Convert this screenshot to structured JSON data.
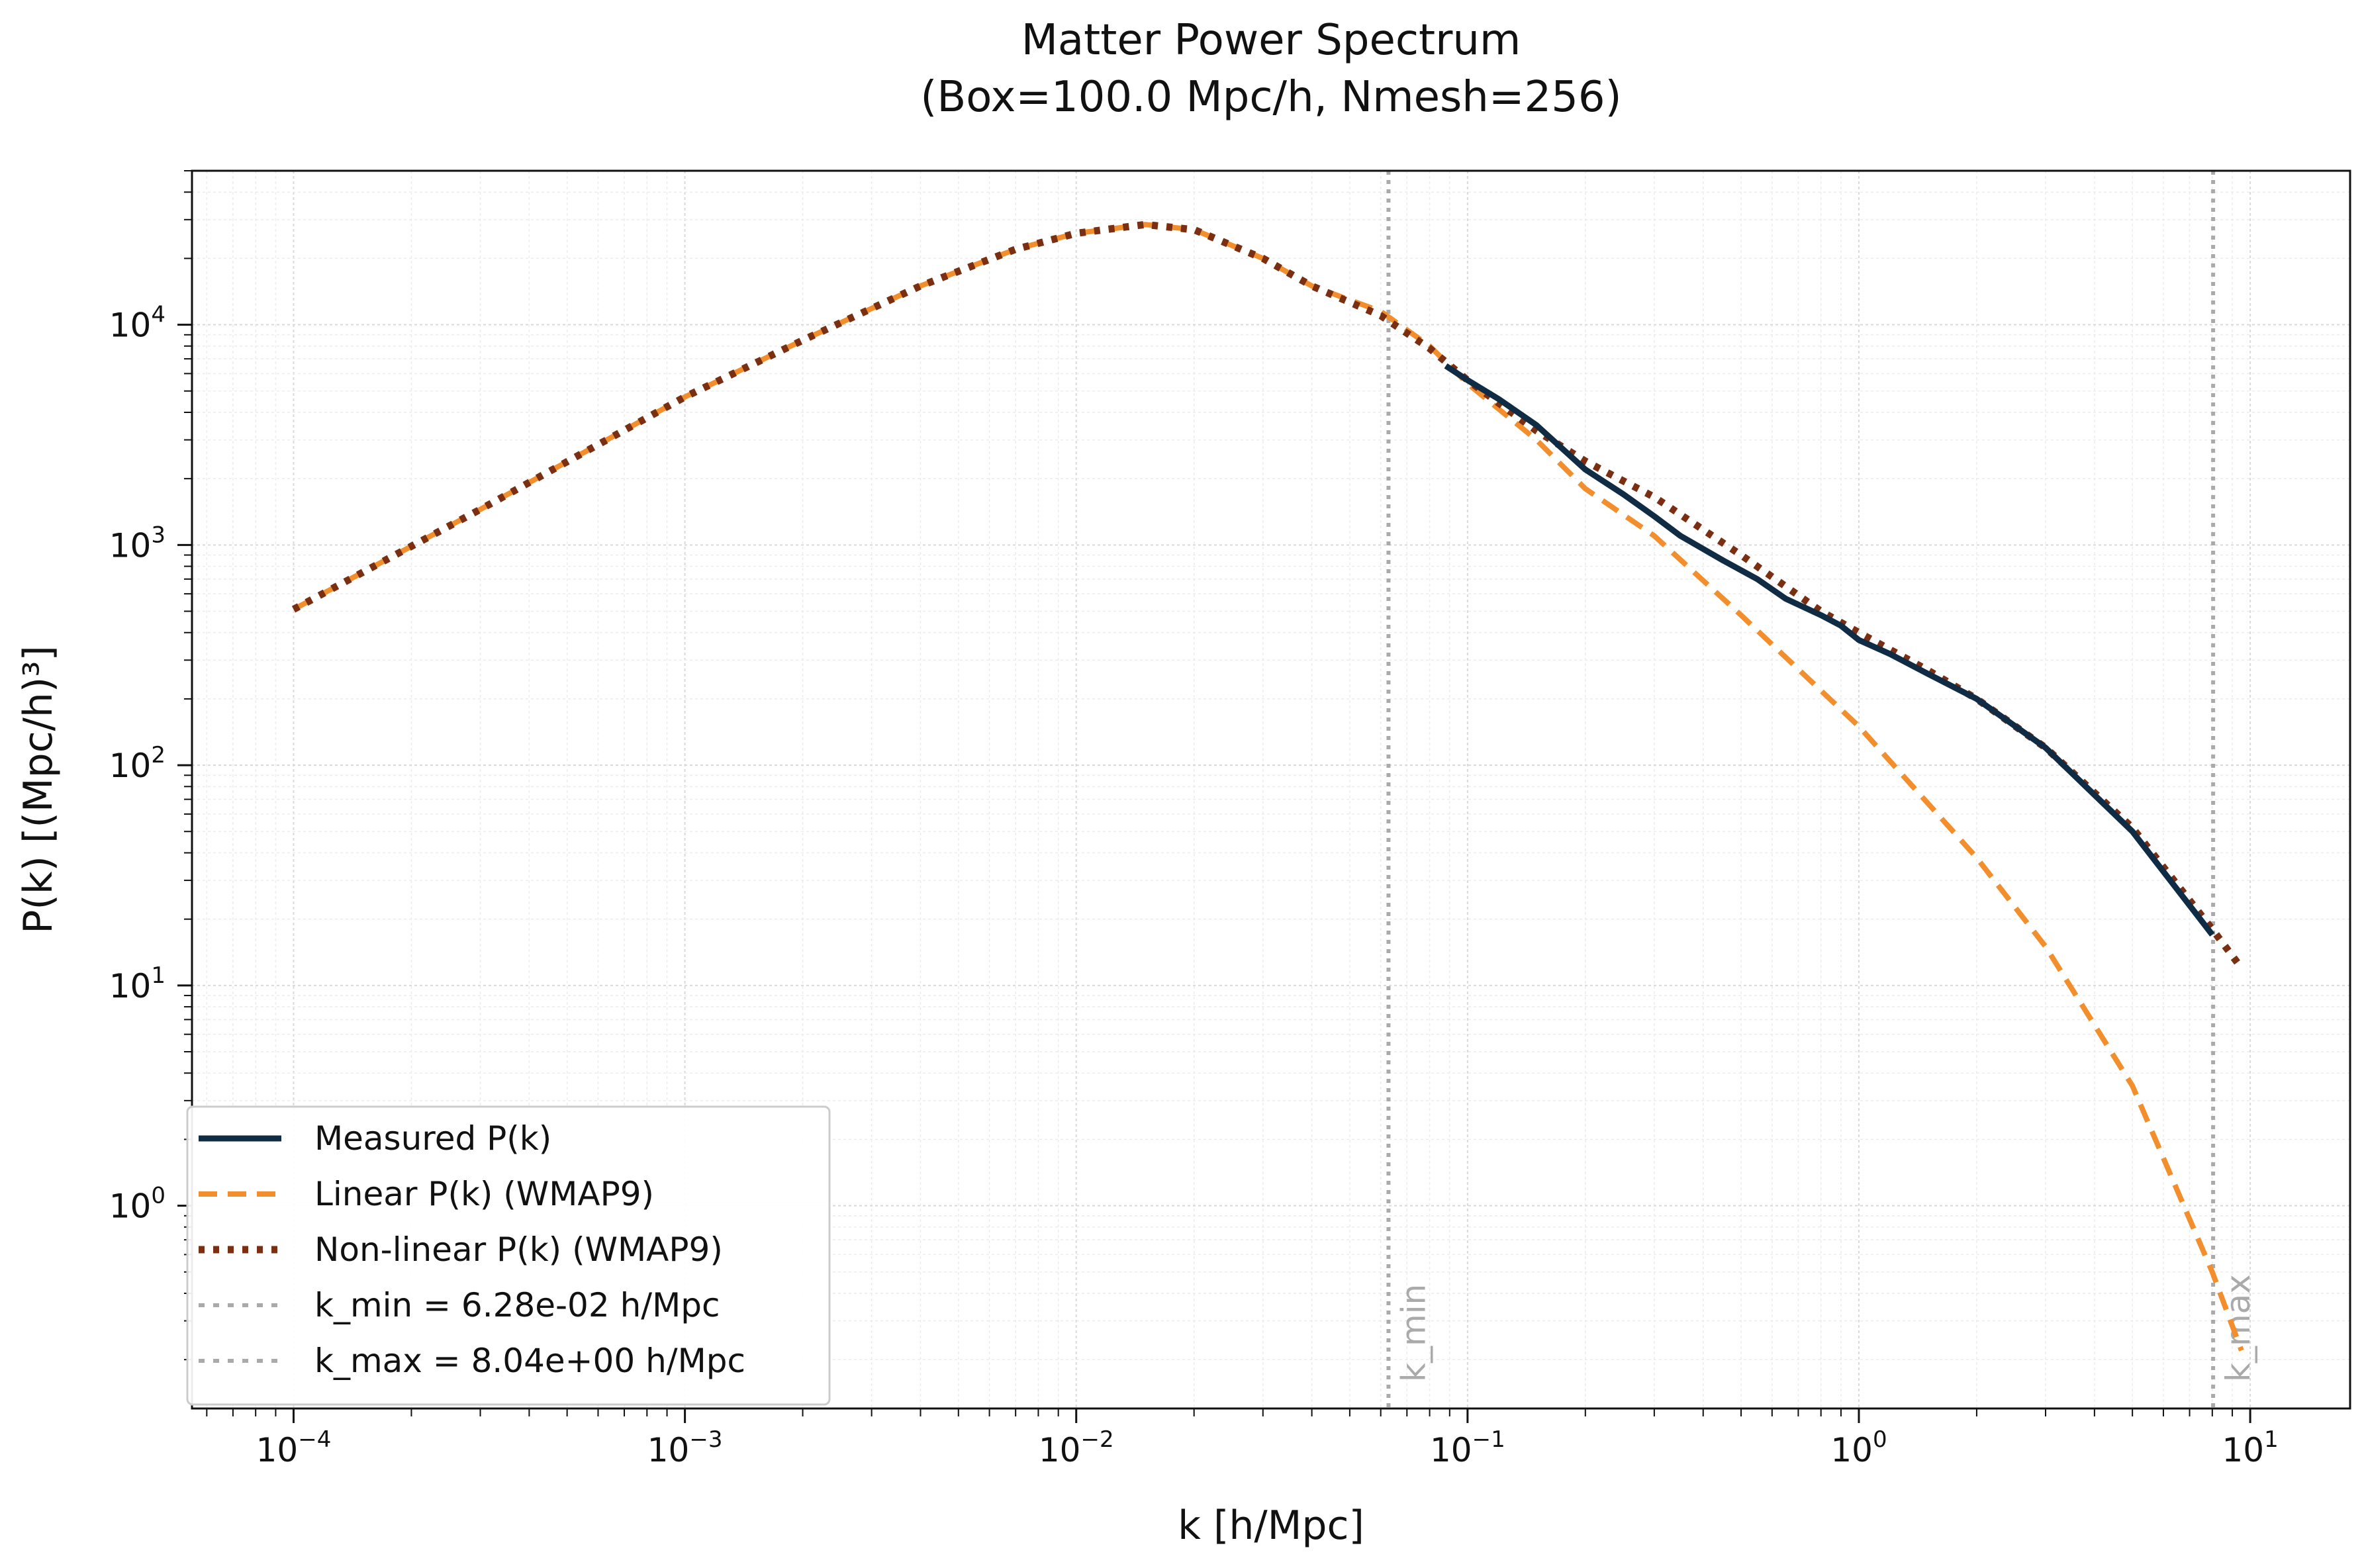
{
  "chart_data": {
    "type": "line",
    "title": "Matter Power Spectrum",
    "subtitle": "(Box=100.0 Mpc/h, Nmesh=256)",
    "xlabel": "k [h/Mpc]",
    "ylabel": "P(k) [(Mpc/h)³]",
    "xscale": "log",
    "yscale": "log",
    "xlim": [
      5.5e-05,
      18
    ],
    "ylim": [
      0.12,
      50000
    ],
    "x_ticks": [
      {
        "value": 0.0001,
        "base": "10",
        "exp": "−4"
      },
      {
        "value": 0.001,
        "base": "10",
        "exp": "−3"
      },
      {
        "value": 0.01,
        "base": "10",
        "exp": "−2"
      },
      {
        "value": 0.1,
        "base": "10",
        "exp": "−1"
      },
      {
        "value": 1,
        "base": "10",
        "exp": "0"
      },
      {
        "value": 10,
        "base": "10",
        "exp": "1"
      }
    ],
    "y_ticks": [
      {
        "value": 1,
        "base": "10",
        "exp": "0"
      },
      {
        "value": 10,
        "base": "10",
        "exp": "1"
      },
      {
        "value": 100,
        "base": "10",
        "exp": "2"
      },
      {
        "value": 1000,
        "base": "10",
        "exp": "3"
      },
      {
        "value": 10000,
        "base": "10",
        "exp": "4"
      }
    ],
    "grid": true,
    "legend_position": "lower-left",
    "series": [
      {
        "name": "Measured P(k)",
        "color": "#0f2c44",
        "style": "solid",
        "points": [
          [
            0.088,
            6500
          ],
          [
            0.1,
            5600
          ],
          [
            0.12,
            4600
          ],
          [
            0.15,
            3500
          ],
          [
            0.2,
            2200
          ],
          [
            0.25,
            1700
          ],
          [
            0.3,
            1350
          ],
          [
            0.35,
            1100
          ],
          [
            0.45,
            850
          ],
          [
            0.55,
            700
          ],
          [
            0.65,
            570
          ],
          [
            0.8,
            480
          ],
          [
            0.9,
            430
          ],
          [
            1.0,
            370
          ],
          [
            1.2,
            320
          ],
          [
            1.5,
            260
          ],
          [
            2.0,
            200
          ],
          [
            3.0,
            120
          ],
          [
            5.0,
            50
          ],
          [
            8.0,
            17
          ]
        ]
      },
      {
        "name": "Linear P(k) (WMAP9)",
        "color": "#f28e2b",
        "style": "dashed",
        "points": [
          [
            0.0001,
            510
          ],
          [
            0.0003,
            1450
          ],
          [
            0.001,
            4700
          ],
          [
            0.002,
            8500
          ],
          [
            0.004,
            15000
          ],
          [
            0.007,
            22000
          ],
          [
            0.01,
            26000
          ],
          [
            0.015,
            28500
          ],
          [
            0.02,
            27000
          ],
          [
            0.03,
            20000
          ],
          [
            0.04,
            15000
          ],
          [
            0.06,
            11500
          ],
          [
            0.08,
            8000
          ],
          [
            0.1,
            5400
          ],
          [
            0.15,
            3000
          ],
          [
            0.2,
            1800
          ],
          [
            0.3,
            1100
          ],
          [
            0.5,
            480
          ],
          [
            1.0,
            150
          ],
          [
            2.0,
            38
          ],
          [
            3.0,
            15
          ],
          [
            5.0,
            3.5
          ],
          [
            8.0,
            0.5
          ],
          [
            9.5,
            0.22
          ]
        ]
      },
      {
        "name": "Non-linear P(k) (WMAP9)",
        "color": "#7a2f12",
        "style": "dotted",
        "points": [
          [
            0.0001,
            510
          ],
          [
            0.0003,
            1450
          ],
          [
            0.001,
            4700
          ],
          [
            0.002,
            8500
          ],
          [
            0.004,
            15000
          ],
          [
            0.007,
            22000
          ],
          [
            0.01,
            26000
          ],
          [
            0.015,
            28500
          ],
          [
            0.02,
            27000
          ],
          [
            0.03,
            20000
          ],
          [
            0.04,
            15000
          ],
          [
            0.06,
            11000
          ],
          [
            0.08,
            7800
          ],
          [
            0.1,
            5600
          ],
          [
            0.15,
            3300
          ],
          [
            0.2,
            2400
          ],
          [
            0.3,
            1650
          ],
          [
            0.5,
            900
          ],
          [
            0.8,
            500
          ],
          [
            1.0,
            400
          ],
          [
            1.5,
            270
          ],
          [
            2.0,
            200
          ],
          [
            3.0,
            120
          ],
          [
            5.0,
            52
          ],
          [
            8.0,
            18
          ],
          [
            9.5,
            12
          ]
        ]
      }
    ],
    "vlines": [
      {
        "name": "k_min = 6.28e-02 h/Mpc",
        "x": 0.0628,
        "label": "k_min",
        "color": "#aaaaaa",
        "style": "dotted"
      },
      {
        "name": "k_max = 8.04e+00 h/Mpc",
        "x": 8.04,
        "label": "k_max",
        "color": "#aaaaaa",
        "style": "dotted"
      }
    ]
  }
}
